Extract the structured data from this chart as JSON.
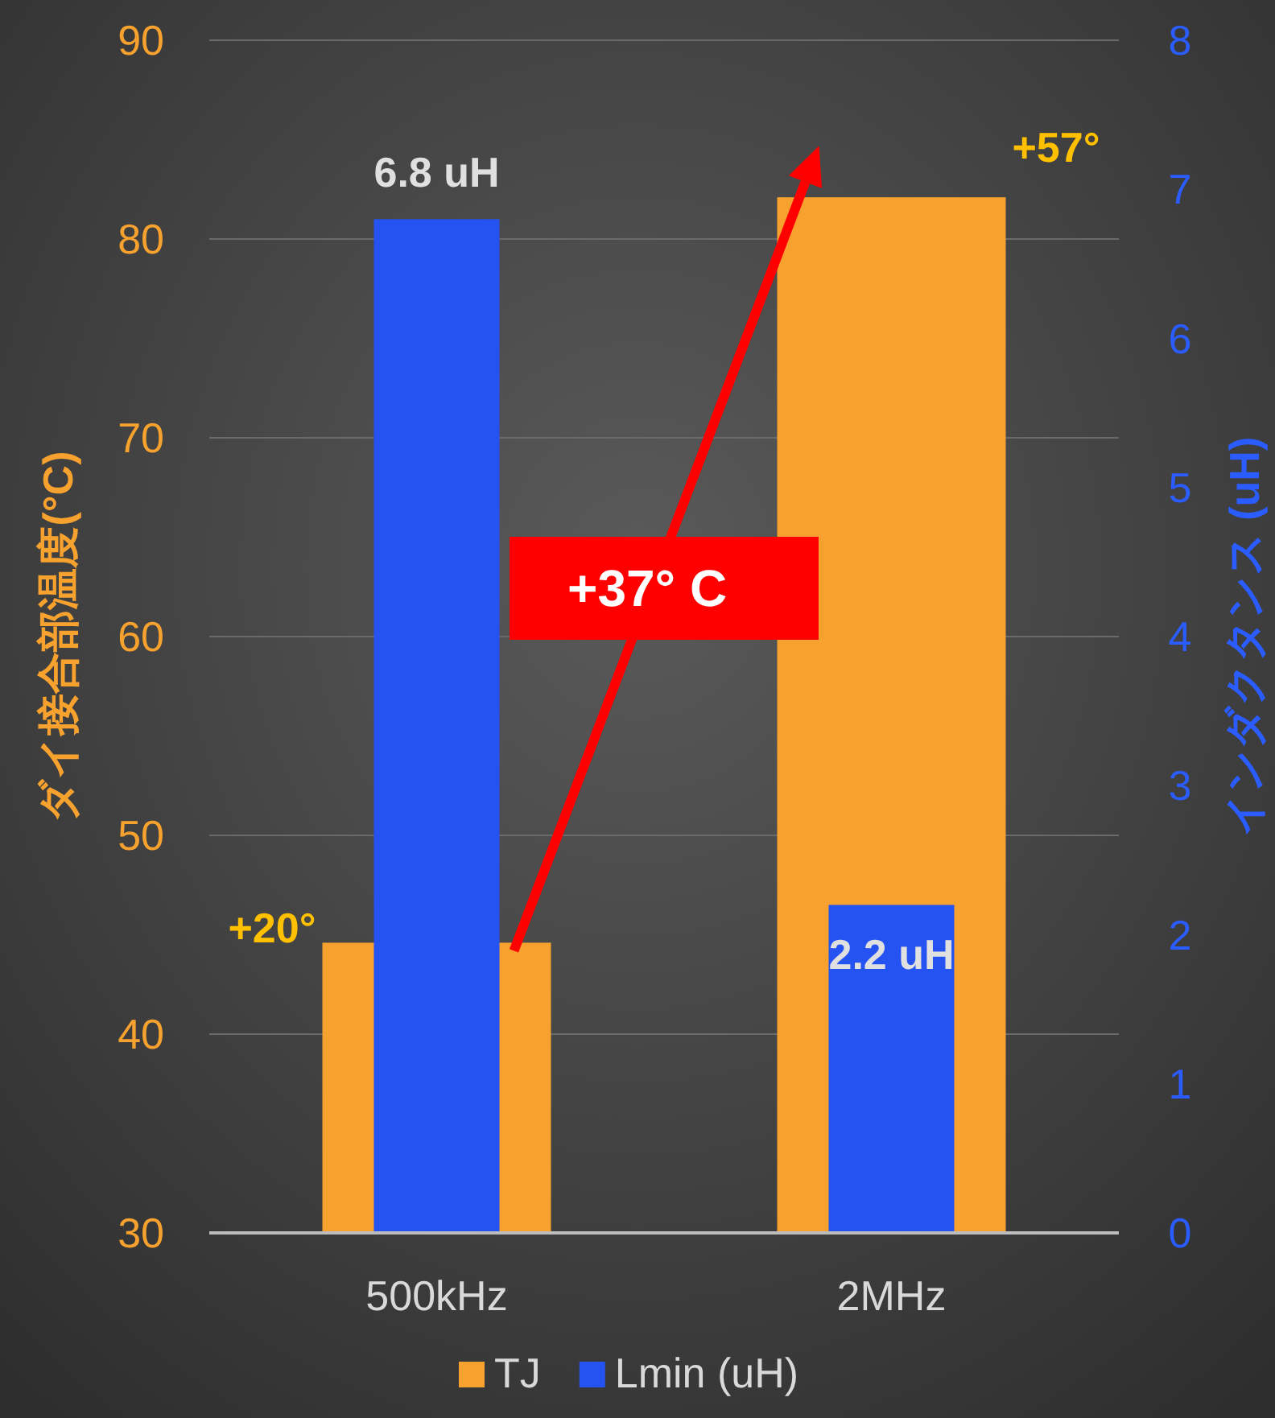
{
  "chart_data": {
    "type": "bar",
    "categories": [
      "500kHz",
      "2MHz"
    ],
    "series": [
      {
        "name": "TJ",
        "color": "#f7a12e",
        "values": [
          44.6,
          82.1
        ],
        "axis": "y"
      },
      {
        "name": "Lmin (uH)",
        "color": "#2553f2",
        "values": [
          6.8,
          2.2
        ],
        "axis": "y2",
        "value_labels": [
          "6.8 uH",
          "2.2 uH"
        ]
      }
    ],
    "ylabel": "ダイ接合部温度(°C)",
    "y2label": "インダクタンス (uH)",
    "ylim": [
      30,
      90
    ],
    "yticks": [
      30,
      40,
      50,
      60,
      70,
      80,
      90
    ],
    "y2lim": [
      0,
      8
    ],
    "y2ticks": [
      0,
      1,
      2,
      3,
      4,
      5,
      6,
      7,
      8
    ],
    "grid": "y",
    "legend": "bottom",
    "annotations": [
      {
        "text": "+20°",
        "x": "500kHz",
        "y": 44.6
      },
      {
        "text": "+57°",
        "x": "2MHz",
        "y": 82.1
      },
      "+37° C"
    ]
  }
}
